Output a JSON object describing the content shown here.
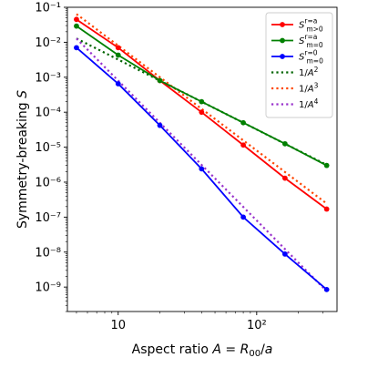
{
  "chart_data": {
    "type": "line",
    "title": "",
    "xlabel": "Aspect ratio A = R00/a",
    "ylabel": "Symmetry-breaking S",
    "xscale": "log",
    "yscale": "log",
    "xlim": [
      4.3,
      380
    ],
    "ylim": [
      2e-10,
      0.1
    ],
    "grid": false,
    "legend_position": "top-right",
    "x_ticks": [
      {
        "value": 10,
        "label": "10"
      },
      {
        "value": 100,
        "label": "10²"
      }
    ],
    "y_ticks": [
      {
        "value": 1e-09,
        "label": "10⁻⁹"
      },
      {
        "value": 1e-08,
        "label": "10⁻⁸"
      },
      {
        "value": 1e-07,
        "label": "10⁻⁷"
      },
      {
        "value": 1e-06,
        "label": "10⁻⁶"
      },
      {
        "value": 1e-05,
        "label": "10⁻⁵"
      },
      {
        "value": 0.0001,
        "label": "10⁻⁴"
      },
      {
        "value": 0.001,
        "label": "10⁻³"
      },
      {
        "value": 0.01,
        "label": "10⁻²"
      },
      {
        "value": 0.1,
        "label": "10⁻¹"
      }
    ],
    "x": [
      5,
      10,
      20,
      40,
      80,
      160,
      320
    ],
    "series": [
      {
        "name": "S_{m>0}^{r=a}",
        "color": "#ff0000",
        "style": "solid-marker",
        "values": [
          0.045,
          0.007,
          0.0008,
          0.0001,
          1.15e-05,
          1.3e-06,
          1.7e-07
        ]
      },
      {
        "name": "S_{m=0}^{r=a}",
        "color": "#008000",
        "style": "solid-marker",
        "values": [
          0.029,
          0.0043,
          0.0008,
          0.0002,
          5e-05,
          1.25e-05,
          3e-06
        ]
      },
      {
        "name": "S_{m=0}^{r=0}",
        "color": "#0000ff",
        "style": "solid-marker",
        "values": [
          0.007,
          0.00065,
          4.2e-05,
          2.4e-06,
          1e-07,
          8.8e-09,
          8.5e-10
        ]
      },
      {
        "name": "1/A²",
        "color": "#006400",
        "style": "dotted",
        "values": [
          0.0128,
          0.0032,
          0.0008,
          0.0002,
          5e-05,
          1.25e-05,
          3.125e-06
        ]
      },
      {
        "name": "1/A³",
        "color": "#ff4500",
        "style": "dotted",
        "values": [
          0.064,
          0.008,
          0.001,
          0.000125,
          1.5625e-05,
          1.953e-06,
          2.44e-07
        ]
      },
      {
        "name": "1/A⁴",
        "color": "#9932cc",
        "style": "dotted",
        "values": [
          0.0128,
          0.0008,
          5e-05,
          3.125e-06,
          1.953e-07,
          1.22e-08,
          7.63e-10
        ]
      }
    ]
  }
}
